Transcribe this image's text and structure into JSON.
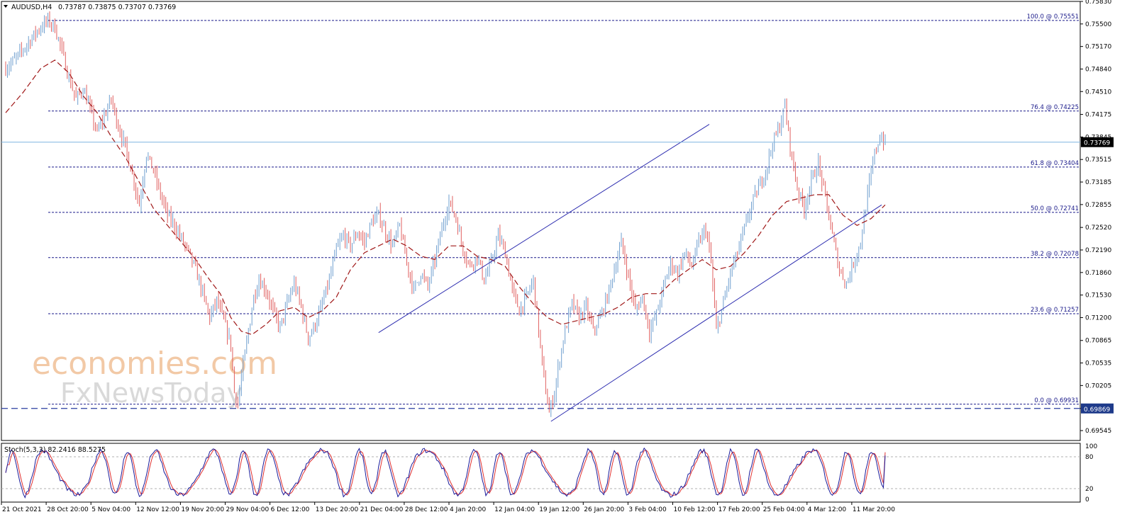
{
  "header": {
    "symbol": "AUDUSD,H4",
    "values": "0.73787 0.73875 0.73707 0.73769"
  },
  "indicator_header": "Stoch(5,3,3) 82.2416 88.5275",
  "watermark": {
    "line1": "economies.com",
    "line2": "FxNewsToday"
  },
  "colors": {
    "bull": "#6f9fcf",
    "bear": "#e06060",
    "fib": "#1a1a8a",
    "channel": "#2b2baf",
    "ma": "#a01818",
    "current": "#7fb6e0",
    "stoch_main": "#1a1a9a",
    "stoch_signal": "#e03030"
  },
  "chart_data": {
    "type": "candlestick",
    "symbol": "AUDUSD",
    "timeframe": "H4",
    "ylim": [
      0.694,
      0.7583
    ],
    "y_ticks": [
      "0.75830",
      "0.75500",
      "0.75170",
      "0.74840",
      "0.74510",
      "0.74175",
      "0.73845",
      "0.73515",
      "0.73185",
      "0.72855",
      "0.72520",
      "0.72190",
      "0.71860",
      "0.71530",
      "0.71200",
      "0.70865",
      "0.70535",
      "0.70205",
      "0.69870",
      "0.69545"
    ],
    "x_labels": [
      "21 Oct 2021",
      "28 Oct 20:00",
      "5 Nov 04:00",
      "12 Nov 12:00",
      "19 Nov 20:00",
      "29 Nov 04:00",
      "6 Dec 12:00",
      "13 Dec 20:00",
      "21 Dec 04:00",
      "28 Dec 12:00",
      "4 Jan 20:00",
      "12 Jan 04:00",
      "19 Jan 12:00",
      "26 Jan 20:00",
      "3 Feb 04:00",
      "10 Feb 12:00",
      "17 Feb 20:00",
      "25 Feb 04:00",
      "4 Mar 12:00",
      "11 Mar 20:00"
    ],
    "current_price": "0.73769",
    "support_level": "0.69869",
    "fibonacci": [
      {
        "label": "100.0 @ 0.75551",
        "price": 0.75551
      },
      {
        "label": "76.4 @ 0.74225",
        "price": 0.74225
      },
      {
        "label": "61.8 @ 0.73404",
        "price": 0.73404
      },
      {
        "label": "50.0 @ 0.72741",
        "price": 0.72741
      },
      {
        "label": "38.2 @ 0.72078",
        "price": 0.72078
      },
      {
        "label": "23.6 @ 0.71257",
        "price": 0.71257
      },
      {
        "label": "0.0 @ 0.69931",
        "price": 0.69931
      }
    ],
    "close_path": [
      [
        0,
        0.7485
      ],
      [
        6,
        0.75
      ],
      [
        12,
        0.752
      ],
      [
        18,
        0.754
      ],
      [
        24,
        0.7555
      ],
      [
        28,
        0.7545
      ],
      [
        32,
        0.751
      ],
      [
        36,
        0.747
      ],
      [
        40,
        0.744
      ],
      [
        44,
        0.7455
      ],
      [
        48,
        0.7425
      ],
      [
        52,
        0.739
      ],
      [
        56,
        0.7415
      ],
      [
        60,
        0.744
      ],
      [
        64,
        0.74
      ],
      [
        68,
        0.737
      ],
      [
        72,
        0.733
      ],
      [
        76,
        0.7285
      ],
      [
        80,
        0.736
      ],
      [
        84,
        0.7335
      ],
      [
        88,
        0.73
      ],
      [
        92,
        0.727
      ],
      [
        96,
        0.7255
      ],
      [
        100,
        0.7235
      ],
      [
        104,
        0.7215
      ],
      [
        108,
        0.719
      ],
      [
        112,
        0.7155
      ],
      [
        116,
        0.712
      ],
      [
        120,
        0.7145
      ],
      [
        124,
        0.7115
      ],
      [
        128,
        0.708
      ],
      [
        130,
        0.701
      ],
      [
        132,
        0.6995
      ],
      [
        135,
        0.705
      ],
      [
        138,
        0.71
      ],
      [
        141,
        0.715
      ],
      [
        144,
        0.7175
      ],
      [
        148,
        0.716
      ],
      [
        152,
        0.713
      ],
      [
        156,
        0.7105
      ],
      [
        160,
        0.714
      ],
      [
        164,
        0.717
      ],
      [
        168,
        0.7135
      ],
      [
        172,
        0.709
      ],
      [
        176,
        0.711
      ],
      [
        180,
        0.714
      ],
      [
        184,
        0.7175
      ],
      [
        188,
        0.722
      ],
      [
        192,
        0.724
      ],
      [
        196,
        0.7225
      ],
      [
        200,
        0.7245
      ],
      [
        204,
        0.723
      ],
      [
        208,
        0.726
      ],
      [
        212,
        0.727
      ],
      [
        216,
        0.7245
      ],
      [
        220,
        0.7225
      ],
      [
        224,
        0.7255
      ],
      [
        228,
        0.72
      ],
      [
        232,
        0.716
      ],
      [
        236,
        0.7185
      ],
      [
        240,
        0.7165
      ],
      [
        244,
        0.7205
      ],
      [
        248,
        0.725
      ],
      [
        252,
        0.729
      ],
      [
        256,
        0.7265
      ],
      [
        260,
        0.722
      ],
      [
        264,
        0.7195
      ],
      [
        268,
        0.721
      ],
      [
        272,
        0.7175
      ],
      [
        276,
        0.72
      ],
      [
        280,
        0.724
      ],
      [
        284,
        0.7215
      ],
      [
        288,
        0.716
      ],
      [
        292,
        0.713
      ],
      [
        296,
        0.715
      ],
      [
        300,
        0.7175
      ],
      [
        303,
        0.71
      ],
      [
        306,
        0.703
      ],
      [
        309,
        0.698
      ],
      [
        312,
        0.701
      ],
      [
        315,
        0.706
      ],
      [
        318,
        0.71
      ],
      [
        322,
        0.714
      ],
      [
        326,
        0.712
      ],
      [
        330,
        0.7135
      ],
      [
        334,
        0.71
      ],
      [
        338,
        0.712
      ],
      [
        342,
        0.715
      ],
      [
        346,
        0.719
      ],
      [
        350,
        0.723
      ],
      [
        354,
        0.718
      ],
      [
        358,
        0.713
      ],
      [
        362,
        0.715
      ],
      [
        366,
        0.71
      ],
      [
        370,
        0.7125
      ],
      [
        374,
        0.7165
      ],
      [
        378,
        0.72
      ],
      [
        382,
        0.7185
      ],
      [
        386,
        0.7215
      ],
      [
        390,
        0.7195
      ],
      [
        394,
        0.723
      ],
      [
        398,
        0.725
      ],
      [
        401,
        0.72
      ],
      [
        404,
        0.71
      ],
      [
        408,
        0.714
      ],
      [
        412,
        0.7185
      ],
      [
        416,
        0.7215
      ],
      [
        420,
        0.725
      ],
      [
        424,
        0.7285
      ],
      [
        428,
        0.731
      ],
      [
        432,
        0.7335
      ],
      [
        436,
        0.7375
      ],
      [
        440,
        0.74
      ],
      [
        443,
        0.743
      ],
      [
        446,
        0.737
      ],
      [
        450,
        0.731
      ],
      [
        454,
        0.728
      ],
      [
        458,
        0.732
      ],
      [
        462,
        0.7345
      ],
      [
        466,
        0.7295
      ],
      [
        470,
        0.724
      ],
      [
        474,
        0.719
      ],
      [
        478,
        0.717
      ],
      [
        482,
        0.72
      ],
      [
        486,
        0.723
      ],
      [
        490,
        0.73
      ],
      [
        494,
        0.736
      ],
      [
        497,
        0.7385
      ],
      [
        500,
        0.7377
      ]
    ],
    "ma_path": [
      [
        0,
        0.742
      ],
      [
        10,
        0.745
      ],
      [
        20,
        0.7485
      ],
      [
        28,
        0.7497
      ],
      [
        36,
        0.7478
      ],
      [
        44,
        0.7445
      ],
      [
        52,
        0.742
      ],
      [
        60,
        0.7385
      ],
      [
        68,
        0.7355
      ],
      [
        76,
        0.7318
      ],
      [
        84,
        0.728
      ],
      [
        92,
        0.7255
      ],
      [
        100,
        0.723
      ],
      [
        108,
        0.7205
      ],
      [
        116,
        0.7175
      ],
      [
        122,
        0.7155
      ],
      [
        128,
        0.712
      ],
      [
        134,
        0.71
      ],
      [
        140,
        0.7095
      ],
      [
        148,
        0.711
      ],
      [
        156,
        0.713
      ],
      [
        164,
        0.7135
      ],
      [
        172,
        0.712
      ],
      [
        180,
        0.713
      ],
      [
        188,
        0.715
      ],
      [
        196,
        0.719
      ],
      [
        204,
        0.7215
      ],
      [
        212,
        0.7225
      ],
      [
        220,
        0.7235
      ],
      [
        228,
        0.7225
      ],
      [
        236,
        0.721
      ],
      [
        244,
        0.7205
      ],
      [
        252,
        0.7225
      ],
      [
        260,
        0.7225
      ],
      [
        268,
        0.721
      ],
      [
        276,
        0.7205
      ],
      [
        284,
        0.7195
      ],
      [
        292,
        0.7165
      ],
      [
        300,
        0.714
      ],
      [
        308,
        0.712
      ],
      [
        316,
        0.711
      ],
      [
        324,
        0.7115
      ],
      [
        332,
        0.712
      ],
      [
        340,
        0.7125
      ],
      [
        348,
        0.7135
      ],
      [
        356,
        0.715
      ],
      [
        364,
        0.7155
      ],
      [
        372,
        0.7155
      ],
      [
        380,
        0.7175
      ],
      [
        388,
        0.719
      ],
      [
        396,
        0.7205
      ],
      [
        404,
        0.719
      ],
      [
        412,
        0.7195
      ],
      [
        420,
        0.7215
      ],
      [
        428,
        0.724
      ],
      [
        436,
        0.727
      ],
      [
        444,
        0.729
      ],
      [
        452,
        0.7295
      ],
      [
        460,
        0.73
      ],
      [
        468,
        0.73
      ],
      [
        476,
        0.727
      ],
      [
        484,
        0.7255
      ],
      [
        492,
        0.7265
      ],
      [
        500,
        0.7285
      ]
    ],
    "channel": {
      "upper": [
        [
          212,
          0.7098
        ],
        [
          400,
          0.7403
        ]
      ],
      "lower": [
        [
          310,
          0.6968
        ],
        [
          498,
          0.7285
        ]
      ]
    },
    "stochastic": {
      "name": "Stoch(5,3,3)",
      "main": 82.2416,
      "signal": 88.5275,
      "levels": [
        20,
        80
      ],
      "y_ticks": [
        "100",
        "80",
        "20",
        "0"
      ]
    }
  }
}
